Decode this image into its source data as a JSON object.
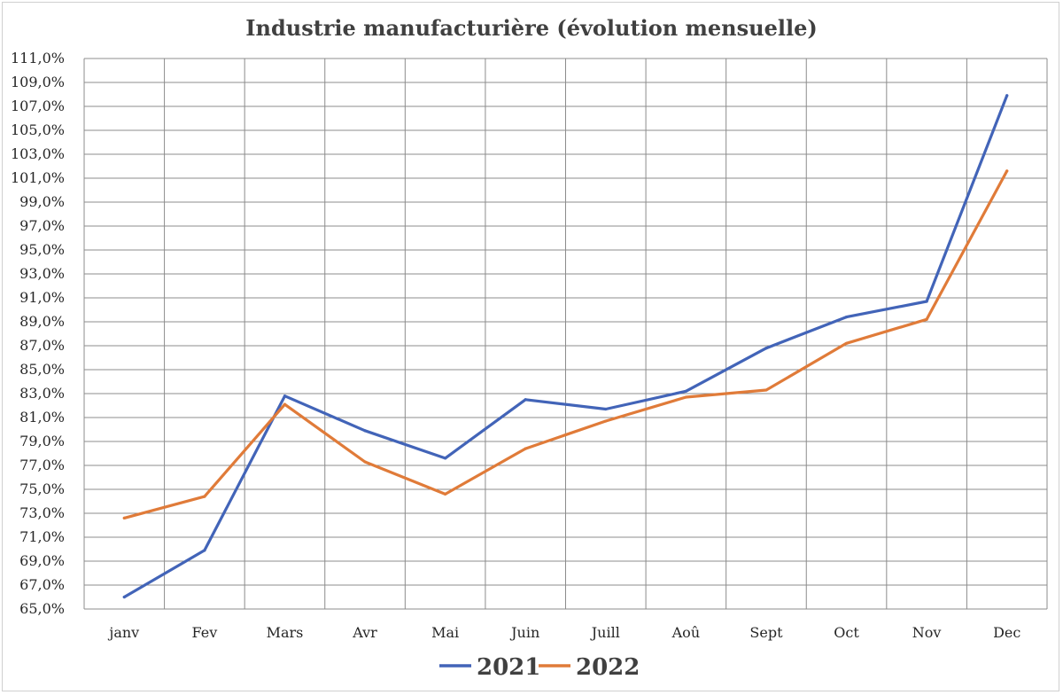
{
  "chart_data": {
    "type": "line",
    "title": "Industrie manufacturière (évolution mensuelle)",
    "xlabel": "",
    "ylabel": "",
    "categories": [
      "janv",
      "Fev",
      "Mars",
      "Avr",
      "Mai",
      "Juin",
      "Juill",
      "Aoû",
      "Sept",
      "Oct",
      "Nov",
      "Dec"
    ],
    "ylim": [
      65,
      111
    ],
    "y_ticks": [
      65,
      67,
      69,
      71,
      73,
      75,
      77,
      79,
      81,
      83,
      85,
      87,
      89,
      91,
      93,
      95,
      97,
      99,
      101,
      103,
      105,
      107,
      109,
      111
    ],
    "y_tick_labels": [
      "65,0%",
      "67,0%",
      "69,0%",
      "71,0%",
      "73,0%",
      "75,0%",
      "77,0%",
      "79,0%",
      "81,0%",
      "83,0%",
      "85,0%",
      "87,0%",
      "89,0%",
      "91,0%",
      "93,0%",
      "95,0%",
      "97,0%",
      "99,0%",
      "101,0%",
      "103,0%",
      "105,0%",
      "107,0%",
      "109,0%",
      "111,0%"
    ],
    "grid": true,
    "legend_position": "bottom",
    "series": [
      {
        "name": "2021",
        "color": "#4264b8",
        "values": [
          66.0,
          69.9,
          82.8,
          79.9,
          77.6,
          82.5,
          81.7,
          83.2,
          86.8,
          89.4,
          90.7,
          107.9
        ]
      },
      {
        "name": "2022",
        "color": "#e07b39",
        "values": [
          72.6,
          74.4,
          82.1,
          77.3,
          74.6,
          78.4,
          80.7,
          82.7,
          83.3,
          87.2,
          89.2,
          101.6
        ]
      }
    ]
  }
}
